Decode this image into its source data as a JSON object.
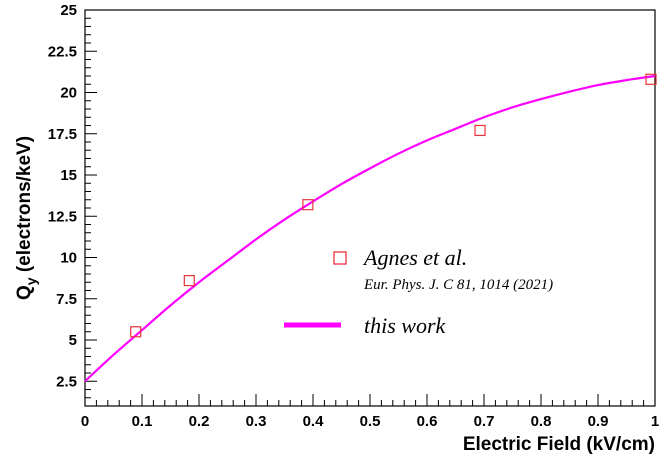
{
  "chart_data": {
    "type": "scatter",
    "xlabel": "Electric Field (kV/cm)",
    "ylabel_main": "Q",
    "ylabel_sub": "y",
    "ylabel_rest": " (electrons/keV)",
    "xlim": [
      0,
      1
    ],
    "ylim": [
      1,
      25
    ],
    "x_ticks": [
      0,
      0.1,
      0.2,
      0.3,
      0.4,
      0.5,
      0.6,
      0.7,
      0.8,
      0.9,
      1
    ],
    "x_tick_labels": [
      "0",
      "0.1",
      "0.2",
      "0.3",
      "0.4",
      "0.5",
      "0.6",
      "0.7",
      "0.8",
      "0.9",
      "1"
    ],
    "y_ticks": [
      2.5,
      5,
      7.5,
      10,
      12.5,
      15,
      17.5,
      20,
      22.5,
      25
    ],
    "y_tick_labels": [
      "2.5",
      "5",
      "7.5",
      "10",
      "12.5",
      "15",
      "17.5",
      "20",
      "22.5",
      "25"
    ],
    "grid": false,
    "legend_position": "center-right",
    "series": [
      {
        "kind": "markers",
        "name": "Agnes et al.",
        "reference": "Eur. Phys. J. C 81, 1014 (2021)",
        "color": "#e8333a",
        "x": [
          0.089,
          0.183,
          0.391,
          0.693,
          0.993
        ],
        "y": [
          5.5,
          8.6,
          13.2,
          17.7,
          20.8
        ]
      },
      {
        "kind": "line",
        "name": "this work",
        "color": "#ff00ff",
        "x": [
          0.0,
          0.05,
          0.1,
          0.15,
          0.2,
          0.25,
          0.3,
          0.35,
          0.4,
          0.45,
          0.5,
          0.55,
          0.6,
          0.65,
          0.7,
          0.75,
          0.8,
          0.85,
          0.9,
          0.95,
          1.0
        ],
        "y": [
          2.5,
          4.1,
          5.6,
          7.1,
          8.5,
          9.8,
          11.1,
          12.3,
          13.4,
          14.45,
          15.4,
          16.3,
          17.1,
          17.8,
          18.5,
          19.1,
          19.6,
          20.05,
          20.45,
          20.75,
          21.0
        ]
      }
    ]
  }
}
